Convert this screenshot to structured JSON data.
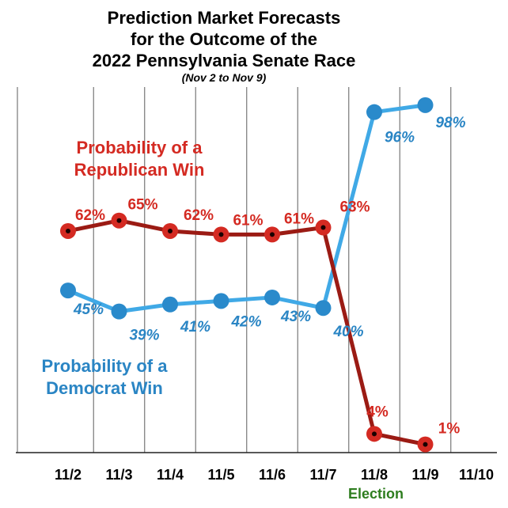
{
  "chart_data": {
    "type": "line",
    "title_lines": [
      "Prediction Market Forecasts",
      "for the Outcome of the",
      "2022 Pennsylvania Senate Race"
    ],
    "subtitle": "(Nov 2 to Nov 9)",
    "categories": [
      "11/2",
      "11/3",
      "11/4",
      "11/5",
      "11/6",
      "11/7",
      "11/8",
      "11/9",
      "11/10"
    ],
    "highlight_category": "11/8",
    "annotation": "Election",
    "ylim": [
      0,
      100
    ],
    "grid": "vertical",
    "series": [
      {
        "key": "rep",
        "label_lines": [
          "Probability of a",
          "Republican Win"
        ],
        "color": "#9b1b14",
        "marker_color": "#d42a22",
        "label_color": "#d42a22",
        "x": [
          "11/2",
          "11/3",
          "11/4",
          "11/5",
          "11/6",
          "11/7",
          "11/8",
          "11/9"
        ],
        "values": [
          62,
          65,
          62,
          61,
          61,
          63,
          4,
          1
        ],
        "value_labels": [
          "62%",
          "65%",
          "62%",
          "61%",
          "61%",
          "63%",
          "4%",
          "1%"
        ]
      },
      {
        "key": "dem",
        "label_lines": [
          "Probability of a",
          "Democrat Win"
        ],
        "color": "#40a9e6",
        "marker_color": "#2a8acb",
        "label_color": "#2a85c4",
        "x": [
          "11/2",
          "11/3",
          "11/4",
          "11/5",
          "11/6",
          "11/7",
          "11/8",
          "11/9"
        ],
        "values": [
          45,
          39,
          41,
          42,
          43,
          40,
          96,
          98
        ],
        "value_labels": [
          "45%",
          "39%",
          "41%",
          "42%",
          "43%",
          "40%",
          "96%",
          "98%"
        ]
      }
    ],
    "colors": {
      "highlight": "#2e7d1f",
      "grid": "#777777",
      "axis": "#222222"
    }
  }
}
